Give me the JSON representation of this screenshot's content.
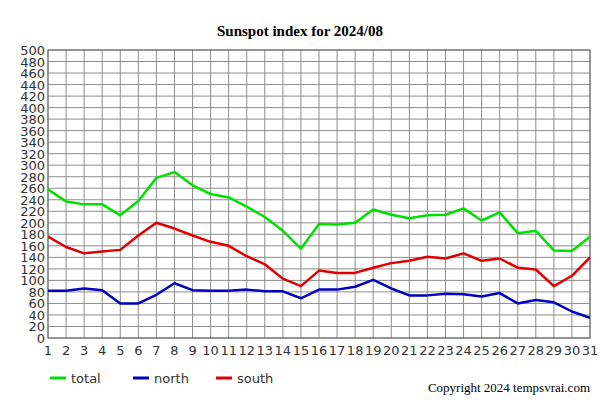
{
  "chart_data": {
    "type": "line",
    "title": "Sunspot index for 2024/08",
    "x": [
      1,
      2,
      3,
      4,
      5,
      6,
      7,
      8,
      9,
      10,
      11,
      12,
      13,
      14,
      15,
      16,
      17,
      18,
      19,
      20,
      21,
      22,
      23,
      24,
      25,
      26,
      27,
      28,
      29,
      30,
      31
    ],
    "xlim": [
      1,
      31
    ],
    "xticks": [
      1,
      2,
      3,
      4,
      5,
      6,
      7,
      8,
      9,
      10,
      11,
      12,
      13,
      14,
      15,
      16,
      17,
      18,
      19,
      20,
      21,
      22,
      23,
      24,
      25,
      26,
      27,
      28,
      29,
      30,
      31
    ],
    "ylim": [
      0,
      500
    ],
    "yticks": [
      0,
      20,
      40,
      60,
      80,
      100,
      120,
      140,
      160,
      180,
      200,
      220,
      240,
      260,
      280,
      300,
      320,
      340,
      360,
      380,
      400,
      420,
      440,
      460,
      480,
      500
    ],
    "grid": true,
    "legend": "bottom",
    "series": [
      {
        "name": "total",
        "color": "#00e000",
        "values": [
          258,
          237,
          232,
          232,
          213,
          238,
          278,
          288,
          265,
          250,
          244,
          228,
          210,
          186,
          155,
          198,
          197,
          200,
          223,
          214,
          208,
          213,
          214,
          225,
          204,
          218,
          182,
          186,
          152,
          151,
          176
        ]
      },
      {
        "name": "north",
        "color": "#0000c0",
        "values": [
          82,
          82,
          86,
          83,
          60,
          60,
          75,
          95,
          83,
          82,
          82,
          84,
          81,
          81,
          69,
          84,
          84,
          89,
          101,
          86,
          74,
          74,
          77,
          76,
          72,
          78,
          60,
          66,
          62,
          46,
          35
        ]
      },
      {
        "name": "south",
        "color": "#e00000",
        "values": [
          176,
          158,
          147,
          150,
          153,
          178,
          200,
          190,
          178,
          167,
          160,
          142,
          128,
          103,
          90,
          117,
          113,
          113,
          122,
          130,
          134,
          141,
          138,
          147,
          134,
          138,
          122,
          119,
          90,
          108,
          140
        ]
      }
    ],
    "annotations": [
      "Copyright 2024 tempsvrai.com"
    ]
  }
}
